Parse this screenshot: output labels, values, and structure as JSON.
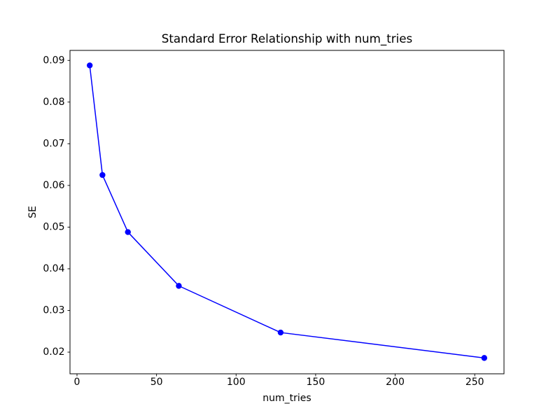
{
  "chart_data": {
    "type": "line",
    "title": "Standard Error Relationship with num_tries",
    "xlabel": "num_tries",
    "ylabel": "SE",
    "x": [
      8,
      16,
      32,
      64,
      128,
      256
    ],
    "y": [
      0.0888,
      0.0625,
      0.0488,
      0.0359,
      0.0247,
      0.0186
    ],
    "xlim": [
      -4.4,
      268.4
    ],
    "ylim": [
      0.0148,
      0.0924
    ],
    "xticks": [
      0,
      50,
      100,
      150,
      200,
      250
    ],
    "xtick_labels": [
      "0",
      "50",
      "100",
      "150",
      "200",
      "250"
    ],
    "yticks": [
      0.02,
      0.03,
      0.04,
      0.05,
      0.06,
      0.07,
      0.08,
      0.09
    ],
    "ytick_labels": [
      "0.02",
      "0.03",
      "0.04",
      "0.05",
      "0.06",
      "0.07",
      "0.08",
      "0.09"
    ],
    "grid": false,
    "legend": "none",
    "line_color": "#0000ff",
    "marker": "circle",
    "marker_color": "#0000ff",
    "axis_color": "#000000",
    "background_color": "#ffffff"
  }
}
